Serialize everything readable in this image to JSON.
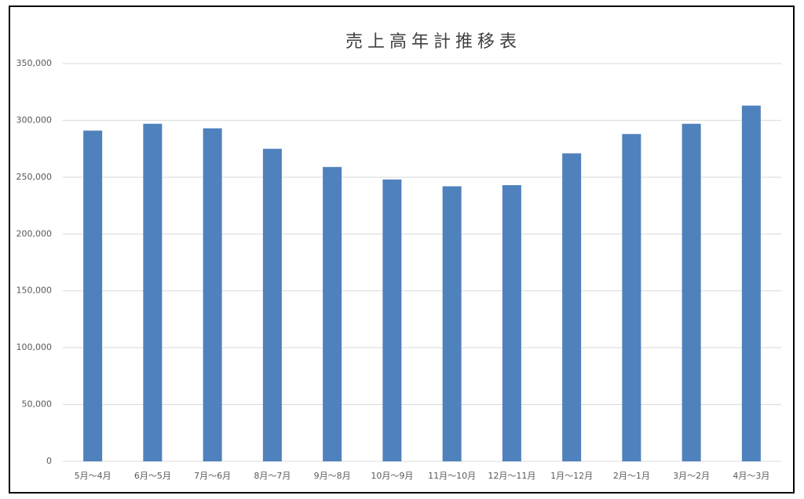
{
  "chart_data": {
    "type": "bar",
    "title": "売上高年計推移表",
    "categories": [
      "5月～4月",
      "6月～5月",
      "7月～6月",
      "8月～7月",
      "9月～8月",
      "10月～9月",
      "11月～10月",
      "12月～11月",
      "1月～12月",
      "2月～1月",
      "3月～2月",
      "4月～3月"
    ],
    "values": [
      291000,
      297000,
      293000,
      275000,
      259000,
      248000,
      242000,
      243000,
      271000,
      288000,
      297000,
      313000
    ],
    "color": "#4f81bd",
    "ylim": [
      0,
      350000
    ],
    "yticks": [
      0,
      {
        "value": 50000,
        "label": "50,000"
      },
      {
        "value": 100000,
        "label": "100,000"
      },
      {
        "value": 150000,
        "label": "150,000"
      },
      {
        "value": 200000,
        "label": "200,000"
      },
      {
        "value": 250000,
        "label": "250,000"
      },
      {
        "value": 300000,
        "label": "300,000"
      },
      {
        "value": 350000,
        "label": "350,000"
      }
    ],
    "grid": true
  }
}
